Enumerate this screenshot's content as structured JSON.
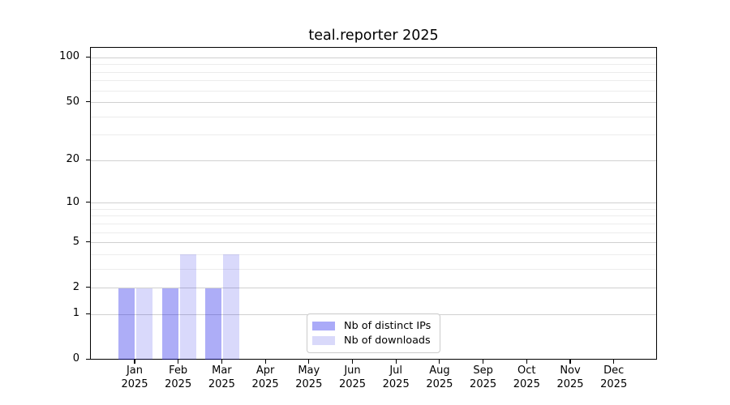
{
  "chart_data": {
    "type": "bar",
    "title": "teal.reporter 2025",
    "categories": [
      "Jan 2025",
      "Feb 2025",
      "Mar 2025",
      "Apr 2025",
      "May 2025",
      "Jun 2025",
      "Jul 2025",
      "Aug 2025",
      "Sep 2025",
      "Oct 2025",
      "Nov 2025",
      "Dec 2025"
    ],
    "series": [
      {
        "name": "Nb of distinct IPs",
        "values": [
          2,
          2,
          2,
          0,
          0,
          0,
          0,
          0,
          0,
          0,
          0,
          0
        ],
        "fill": "rgba(21,21,233,0.35)",
        "swatch_color": "#aaaaf8"
      },
      {
        "name": "Nb of downloads",
        "values": [
          2,
          4,
          4,
          0,
          0,
          0,
          0,
          0,
          0,
          0,
          0,
          0
        ],
        "fill": "rgba(21,21,233,0.16)",
        "swatch_color": "#d9d9fa"
      }
    ],
    "y_axis": {
      "scale": "log10(1+y)",
      "tick_values": [
        0,
        1,
        2,
        5,
        10,
        20,
        50,
        100
      ],
      "tick_labels": [
        "0",
        "1",
        "2",
        "5",
        "10",
        "20",
        "50",
        "100"
      ],
      "minor_gridline_values": [
        3,
        4,
        6,
        7,
        8,
        9,
        30,
        40,
        60,
        70,
        80,
        90
      ],
      "top_value": 117
    },
    "legend": {
      "position": "inside-bottom-center"
    },
    "grid": true,
    "colors": {
      "major_grid": "#d0d0d0",
      "minor_grid": "#ececec",
      "spine": "#000000",
      "background": "#ffffff"
    }
  }
}
